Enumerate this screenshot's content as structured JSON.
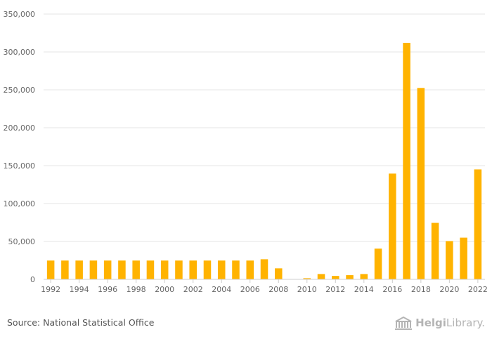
{
  "chart_data": {
    "type": "bar",
    "title": "",
    "xlabel": "",
    "ylabel": "",
    "categories": [
      "1992",
      "1993",
      "1994",
      "1995",
      "1996",
      "1997",
      "1998",
      "1999",
      "2000",
      "2001",
      "2002",
      "2003",
      "2004",
      "2005",
      "2006",
      "2007",
      "2008",
      "2009",
      "2010",
      "2011",
      "2012",
      "2013",
      "2014",
      "2015",
      "2016",
      "2017",
      "2018",
      "2019",
      "2020",
      "2021",
      "2022"
    ],
    "x_tick_labels": [
      "1992",
      "1994",
      "1996",
      "1998",
      "2000",
      "2002",
      "2004",
      "2006",
      "2008",
      "2010",
      "2012",
      "2014",
      "2016",
      "2018",
      "2020",
      "2022"
    ],
    "values": [
      24800,
      24800,
      24800,
      24800,
      24800,
      24800,
      24800,
      24800,
      24800,
      24800,
      24800,
      24800,
      24800,
      24800,
      24800,
      26500,
      14500,
      0,
      1500,
      7000,
      4500,
      5500,
      7000,
      40500,
      139500,
      312000,
      252500,
      74500,
      50500,
      55000,
      145000
    ],
    "ylim": [
      0,
      350000
    ],
    "y_ticks": [
      0,
      50000,
      100000,
      150000,
      200000,
      250000,
      300000,
      350000
    ],
    "y_tick_labels": [
      "0",
      "50,000",
      "100,000",
      "150,000",
      "200,000",
      "250,000",
      "300,000",
      "350,000"
    ],
    "grid": true,
    "bar_color": "#FFB300"
  },
  "footer": {
    "source": "Source: National Statistical Office",
    "logo_bold": "Helgi",
    "logo_light": "Library."
  }
}
